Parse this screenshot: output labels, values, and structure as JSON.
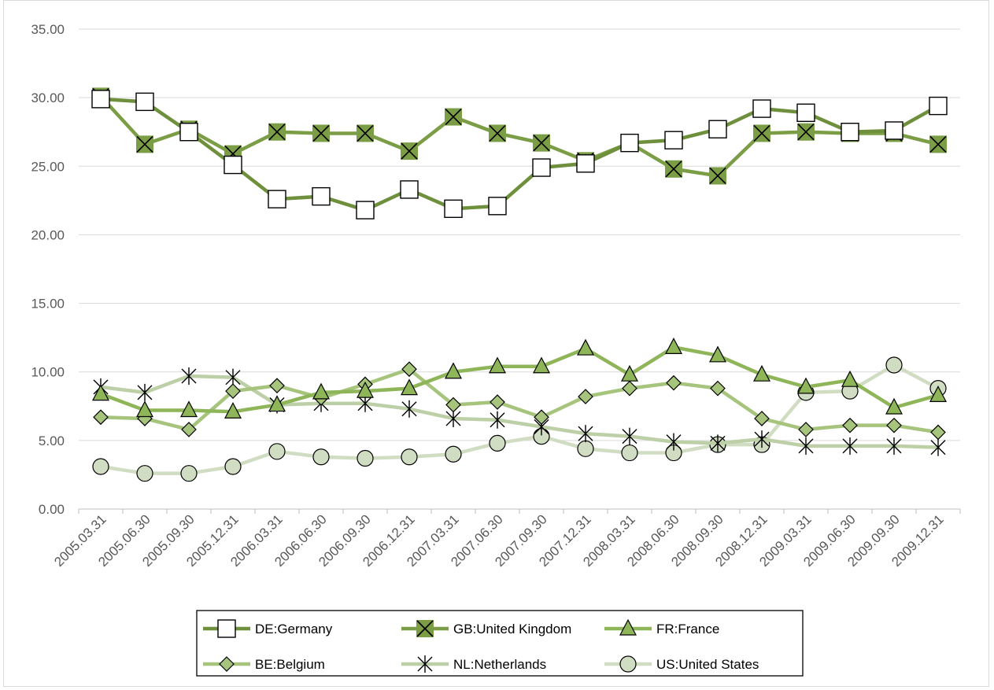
{
  "chart_data": {
    "type": "line",
    "title": "",
    "xlabel": "",
    "ylabel": "",
    "ylim": [
      0,
      35
    ],
    "y_ticks": [
      "0.00",
      "5.00",
      "10.00",
      "15.00",
      "20.00",
      "25.00",
      "30.00",
      "35.00"
    ],
    "grid": "horizontal",
    "legend_position": "bottom",
    "categories": [
      "2005.03.31",
      "2005.06.30",
      "2005.09.30",
      "2005.12.31",
      "2006.03.31",
      "2006.06.30",
      "2006.09.30",
      "2006.12.31",
      "2007.03.31",
      "2007.06.30",
      "2007.09.30",
      "2007.12.31",
      "2008.03.31",
      "2008.06.30",
      "2008.09.30",
      "2008.12.31",
      "2009.03.31",
      "2009.06.30",
      "2009.09.30",
      "2009.12.31"
    ],
    "series": [
      {
        "name": "DE:Germany",
        "color": "#6e8f3c",
        "marker": "square",
        "values": [
          29.9,
          29.7,
          27.5,
          25.1,
          22.6,
          22.8,
          21.8,
          23.3,
          21.9,
          22.1,
          24.9,
          25.2,
          26.7,
          26.9,
          27.7,
          29.2,
          28.9,
          27.5,
          27.6,
          29.4
        ]
      },
      {
        "name": "GB:United Kingdom",
        "color": "#7a9d45",
        "marker": "x-box",
        "values": [
          30.1,
          26.6,
          27.7,
          25.9,
          27.5,
          27.4,
          27.4,
          26.1,
          28.6,
          27.4,
          26.7,
          25.4,
          26.7,
          24.8,
          24.3,
          27.4,
          27.5,
          27.4,
          27.4,
          26.6
        ]
      },
      {
        "name": "FR:France",
        "color": "#8fb559",
        "marker": "triangle",
        "values": [
          8.4,
          7.2,
          7.2,
          7.1,
          7.6,
          8.5,
          8.6,
          8.8,
          10.0,
          10.4,
          10.4,
          11.7,
          9.8,
          11.8,
          11.2,
          9.8,
          8.9,
          9.4,
          7.4,
          8.3
        ]
      },
      {
        "name": "BE:Belgium",
        "color": "#a6c47c",
        "marker": "diamond",
        "values": [
          6.7,
          6.6,
          5.8,
          8.6,
          9.0,
          8.1,
          9.1,
          10.2,
          7.6,
          7.8,
          6.7,
          8.2,
          8.8,
          9.2,
          8.8,
          6.6,
          5.8,
          6.1,
          6.1,
          5.6
        ]
      },
      {
        "name": "NL:Netherlands",
        "color": "#bccfa6",
        "marker": "asterisk",
        "values": [
          8.9,
          8.5,
          9.7,
          9.6,
          7.6,
          7.7,
          7.7,
          7.3,
          6.6,
          6.5,
          6.0,
          5.5,
          5.3,
          4.9,
          4.8,
          5.1,
          4.6,
          4.6,
          4.6,
          4.5
        ]
      },
      {
        "name": "US:United States",
        "color": "#d1ddc3",
        "marker": "circle",
        "values": [
          3.1,
          2.6,
          2.6,
          3.1,
          4.2,
          3.8,
          3.7,
          3.8,
          4.0,
          4.8,
          5.3,
          4.4,
          4.1,
          4.1,
          4.7,
          4.7,
          8.5,
          8.6,
          10.5,
          8.8
        ]
      }
    ]
  }
}
